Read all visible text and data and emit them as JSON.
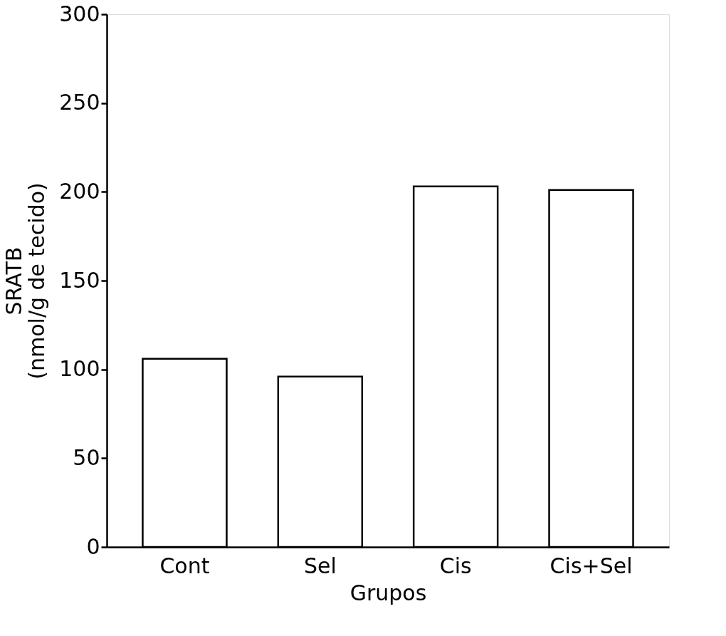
{
  "chart_data": {
    "type": "bar",
    "xlabel": "Grupos",
    "ylabel": "SRATB\n(nmol/g de tecido)",
    "categories": [
      "Cont",
      "Sel",
      "Cis",
      "Cis+Sel"
    ],
    "values": [
      106,
      96,
      203,
      201
    ],
    "color": "#ffffff",
    "ylim": [
      0,
      300
    ],
    "yticks": [
      0,
      50,
      100,
      150,
      200,
      250,
      300
    ],
    "grid": false
  }
}
